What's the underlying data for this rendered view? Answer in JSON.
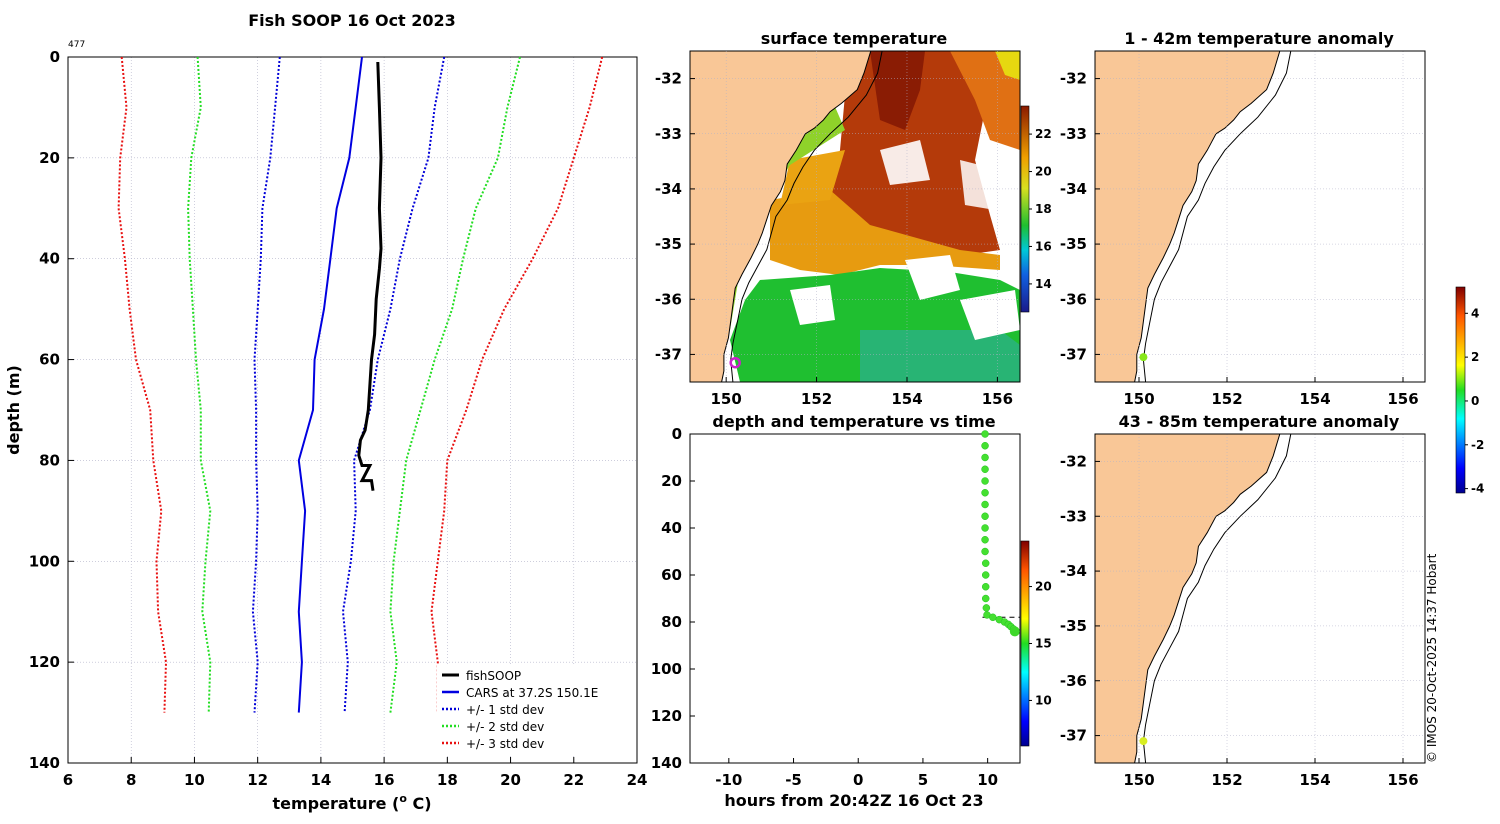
{
  "figure_title": "Fish SOOP 16 Oct 2023",
  "profile_count": "477",
  "watermark": "© IMOS 20-Oct-2025 14:37 Hobart",
  "colors": {
    "fish": "#000000",
    "cars": "#0000e0",
    "std1": "#0000d8",
    "std2": "#22dd22",
    "std3": "#e81010",
    "land": "#f9c797",
    "grid": "#b0b0c8",
    "marker": "#cc22cc"
  },
  "chart_data": [
    {
      "id": "profile",
      "type": "line",
      "title": "Fish SOOP 16 Oct 2023",
      "xlabel": "temperature (",
      "xlabel_sup": "o",
      "xlabel_tail": " C)",
      "ylabel": "depth (m)",
      "xlim": [
        6,
        24
      ],
      "ylim": [
        0,
        140
      ],
      "xticks": [
        6,
        8,
        10,
        12,
        14,
        16,
        18,
        20,
        22,
        24
      ],
      "yticks": [
        0,
        20,
        40,
        60,
        80,
        100,
        120,
        140
      ],
      "grid": true,
      "legend_position": "bottom-right",
      "series": [
        {
          "name": "fishSOOP",
          "style": "solid",
          "width": 3,
          "color": "fish",
          "points": [
            [
              15.8,
              1
            ],
            [
              15.85,
              10
            ],
            [
              15.9,
              20
            ],
            [
              15.85,
              30
            ],
            [
              15.9,
              38
            ],
            [
              15.85,
              42
            ],
            [
              15.75,
              48
            ],
            [
              15.7,
              55
            ],
            [
              15.6,
              60
            ],
            [
              15.55,
              65
            ],
            [
              15.5,
              70
            ],
            [
              15.4,
              74
            ],
            [
              15.25,
              76
            ],
            [
              15.2,
              79
            ],
            [
              15.3,
              81
            ],
            [
              15.55,
              81
            ],
            [
              15.3,
              84
            ],
            [
              15.6,
              84
            ],
            [
              15.65,
              86
            ]
          ]
        },
        {
          "name": "CARS at 37.2S 150.1E",
          "style": "solid",
          "width": 2,
          "color": "cars",
          "points": [
            [
              15.3,
              0
            ],
            [
              15.1,
              10
            ],
            [
              14.9,
              20
            ],
            [
              14.5,
              30
            ],
            [
              14.3,
              40
            ],
            [
              14.1,
              50
            ],
            [
              13.8,
              60
            ],
            [
              13.75,
              70
            ],
            [
              13.3,
              80
            ],
            [
              13.5,
              90
            ],
            [
              13.4,
              100
            ],
            [
              13.3,
              110
            ],
            [
              13.4,
              120
            ],
            [
              13.3,
              130
            ]
          ]
        },
        {
          "name": "+/- 1 std dev",
          "style": "dotted",
          "width": 2,
          "color": "std1",
          "points": [
            [
              12.7,
              0
            ],
            [
              12.55,
              10
            ],
            [
              12.4,
              20
            ],
            [
              12.15,
              30
            ],
            [
              12.1,
              40
            ],
            [
              12.0,
              50
            ],
            [
              11.9,
              60
            ],
            [
              11.95,
              70
            ],
            [
              11.95,
              80
            ],
            [
              12.0,
              90
            ],
            [
              11.95,
              100
            ],
            [
              11.85,
              110
            ],
            [
              12.0,
              120
            ],
            [
              11.9,
              130
            ],
            [
              17.9,
              0
            ],
            [
              17.6,
              10
            ],
            [
              17.4,
              20
            ],
            [
              16.9,
              30
            ],
            [
              16.5,
              40
            ],
            [
              16.2,
              50
            ],
            [
              15.8,
              60
            ],
            [
              15.55,
              70
            ],
            [
              15.05,
              80
            ],
            [
              15.1,
              90
            ],
            [
              14.95,
              100
            ],
            [
              14.7,
              110
            ],
            [
              14.85,
              120
            ],
            [
              14.75,
              130
            ]
          ],
          "split": 14
        },
        {
          "name": "+/- 2 std dev",
          "style": "dotted",
          "width": 2,
          "color": "std2",
          "points": [
            [
              10.1,
              0
            ],
            [
              10.2,
              10
            ],
            [
              9.9,
              20
            ],
            [
              9.8,
              30
            ],
            [
              9.85,
              40
            ],
            [
              9.95,
              50
            ],
            [
              10.05,
              60
            ],
            [
              10.2,
              70
            ],
            [
              10.2,
              80
            ],
            [
              10.5,
              90
            ],
            [
              10.35,
              100
            ],
            [
              10.25,
              110
            ],
            [
              10.5,
              120
            ],
            [
              10.45,
              130
            ],
            [
              20.3,
              0
            ],
            [
              19.9,
              10
            ],
            [
              19.6,
              20
            ],
            [
              18.9,
              30
            ],
            [
              18.5,
              40
            ],
            [
              18.15,
              50
            ],
            [
              17.6,
              60
            ],
            [
              17.15,
              70
            ],
            [
              16.7,
              80
            ],
            [
              16.5,
              90
            ],
            [
              16.3,
              100
            ],
            [
              16.2,
              110
            ],
            [
              16.4,
              120
            ],
            [
              16.2,
              130
            ]
          ],
          "split": 14
        },
        {
          "name": "+/- 3 std dev",
          "style": "dotted",
          "width": 2,
          "color": "std3",
          "points": [
            [
              7.7,
              0
            ],
            [
              7.85,
              10
            ],
            [
              7.65,
              20
            ],
            [
              7.6,
              30
            ],
            [
              7.8,
              40
            ],
            [
              7.95,
              50
            ],
            [
              8.15,
              60
            ],
            [
              8.6,
              70
            ],
            [
              8.7,
              80
            ],
            [
              8.95,
              90
            ],
            [
              8.8,
              100
            ],
            [
              8.85,
              110
            ],
            [
              9.1,
              120
            ],
            [
              9.05,
              130
            ],
            [
              22.9,
              0
            ],
            [
              22.5,
              10
            ],
            [
              22.0,
              20
            ],
            [
              21.5,
              30
            ],
            [
              20.7,
              40
            ],
            [
              19.8,
              50
            ],
            [
              19.1,
              60
            ],
            [
              18.6,
              70
            ],
            [
              18.0,
              80
            ],
            [
              17.9,
              90
            ],
            [
              17.7,
              100
            ],
            [
              17.5,
              110
            ],
            [
              17.7,
              120
            ],
            [
              17.7,
              130
            ]
          ],
          "split": 14
        }
      ]
    },
    {
      "id": "surface",
      "type": "heatmap",
      "title": "surface temperature",
      "xlim": [
        149.2,
        156.5
      ],
      "ylim": [
        -37.5,
        -31.5
      ],
      "xticks": [
        150,
        152,
        154,
        156
      ],
      "yticks": [
        -32,
        -33,
        -34,
        -35,
        -36,
        -37
      ],
      "colorbar_ticks": [
        14,
        16,
        18,
        20,
        22
      ],
      "colorbar_range": [
        12.5,
        23.5
      ],
      "marker": [
        150.2,
        -37.15
      ]
    },
    {
      "id": "anomaly_shallow",
      "type": "heatmap",
      "title": "1 - 42m temperature anomaly",
      "xlim": [
        149.0,
        156.5
      ],
      "ylim": [
        -37.5,
        -31.5
      ],
      "xticks": [
        150,
        152,
        154,
        156
      ],
      "yticks": [
        -32,
        -33,
        -34,
        -35,
        -36,
        -37
      ],
      "point": [
        150.1,
        -37.05
      ],
      "point_color": "#88e81a"
    },
    {
      "id": "anomaly_deep",
      "type": "heatmap",
      "title": "43 - 85m temperature anomaly",
      "xlim": [
        149.0,
        156.5
      ],
      "ylim": [
        -37.5,
        -31.5
      ],
      "xticks": [
        150,
        152,
        154,
        156
      ],
      "yticks": [
        -32,
        -33,
        -34,
        -35,
        -36,
        -37
      ],
      "point": [
        150.1,
        -37.1
      ],
      "point_color": "#d8ee22",
      "colorbar_ticks": [
        -4,
        -2,
        0,
        2,
        4
      ],
      "colorbar_range": [
        -4.2,
        5.2
      ]
    },
    {
      "id": "timeplot",
      "type": "scatter",
      "title": "depth and temperature vs time",
      "xlabel": "hours from 20:42Z 16 Oct 23",
      "xlim": [
        -13,
        12.5
      ],
      "ylim": [
        0,
        140
      ],
      "xticks": [
        -10,
        -5,
        0,
        5,
        10
      ],
      "yticks": [
        0,
        20,
        40,
        60,
        80,
        100,
        120,
        140
      ],
      "colorbar_ticks": [
        10,
        15,
        20
      ],
      "colorbar_range": [
        6,
        24
      ],
      "dashed_depth": 78,
      "points": [
        [
          9.8,
          0
        ],
        [
          9.8,
          5
        ],
        [
          9.8,
          10
        ],
        [
          9.8,
          15
        ],
        [
          9.8,
          20
        ],
        [
          9.8,
          25
        ],
        [
          9.8,
          30
        ],
        [
          9.8,
          35
        ],
        [
          9.8,
          40
        ],
        [
          9.8,
          45
        ],
        [
          9.8,
          50
        ],
        [
          9.85,
          55
        ],
        [
          9.85,
          60
        ],
        [
          9.85,
          65
        ],
        [
          9.85,
          70
        ],
        [
          9.9,
          74
        ],
        [
          9.95,
          77
        ],
        [
          10.4,
          78
        ],
        [
          10.9,
          79
        ],
        [
          11.3,
          80
        ],
        [
          11.6,
          81
        ],
        [
          11.8,
          82
        ],
        [
          12.0,
          83
        ],
        [
          12.1,
          84
        ]
      ]
    }
  ]
}
